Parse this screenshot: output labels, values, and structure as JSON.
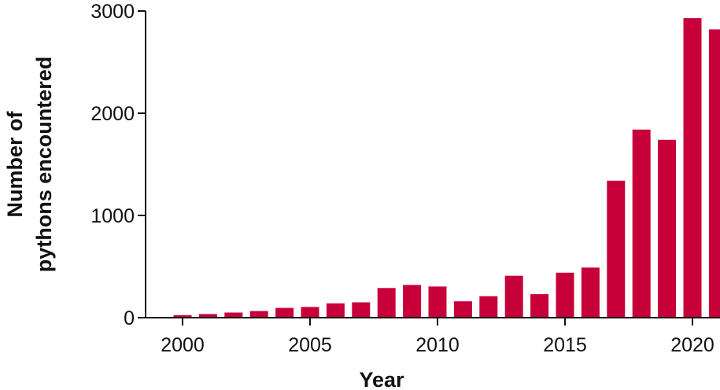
{
  "chart_data": {
    "type": "bar",
    "xlabel": "Year",
    "ylabel_lines": [
      "Number of",
      "pythons encountered"
    ],
    "ylim": [
      0,
      3000
    ],
    "yticks": [
      0,
      1000,
      2000,
      3000
    ],
    "ytick_labels": [
      "0",
      "1000",
      "2000",
      "3000"
    ],
    "xticks": [
      2000,
      2005,
      2010,
      2015,
      2020
    ],
    "xtick_labels": [
      "2000",
      "2005",
      "2010",
      "2015",
      "2020"
    ],
    "x": [
      2000,
      2001,
      2002,
      2003,
      2004,
      2005,
      2006,
      2007,
      2008,
      2009,
      2010,
      2011,
      2012,
      2013,
      2014,
      2015,
      2016,
      2017,
      2018,
      2019,
      2020,
      2021
    ],
    "values": [
      25,
      35,
      50,
      65,
      95,
      105,
      140,
      150,
      290,
      320,
      305,
      160,
      210,
      410,
      230,
      440,
      490,
      1340,
      1840,
      1740,
      2930,
      2820
    ],
    "bar_color": "#c8003a",
    "grid": false
  }
}
